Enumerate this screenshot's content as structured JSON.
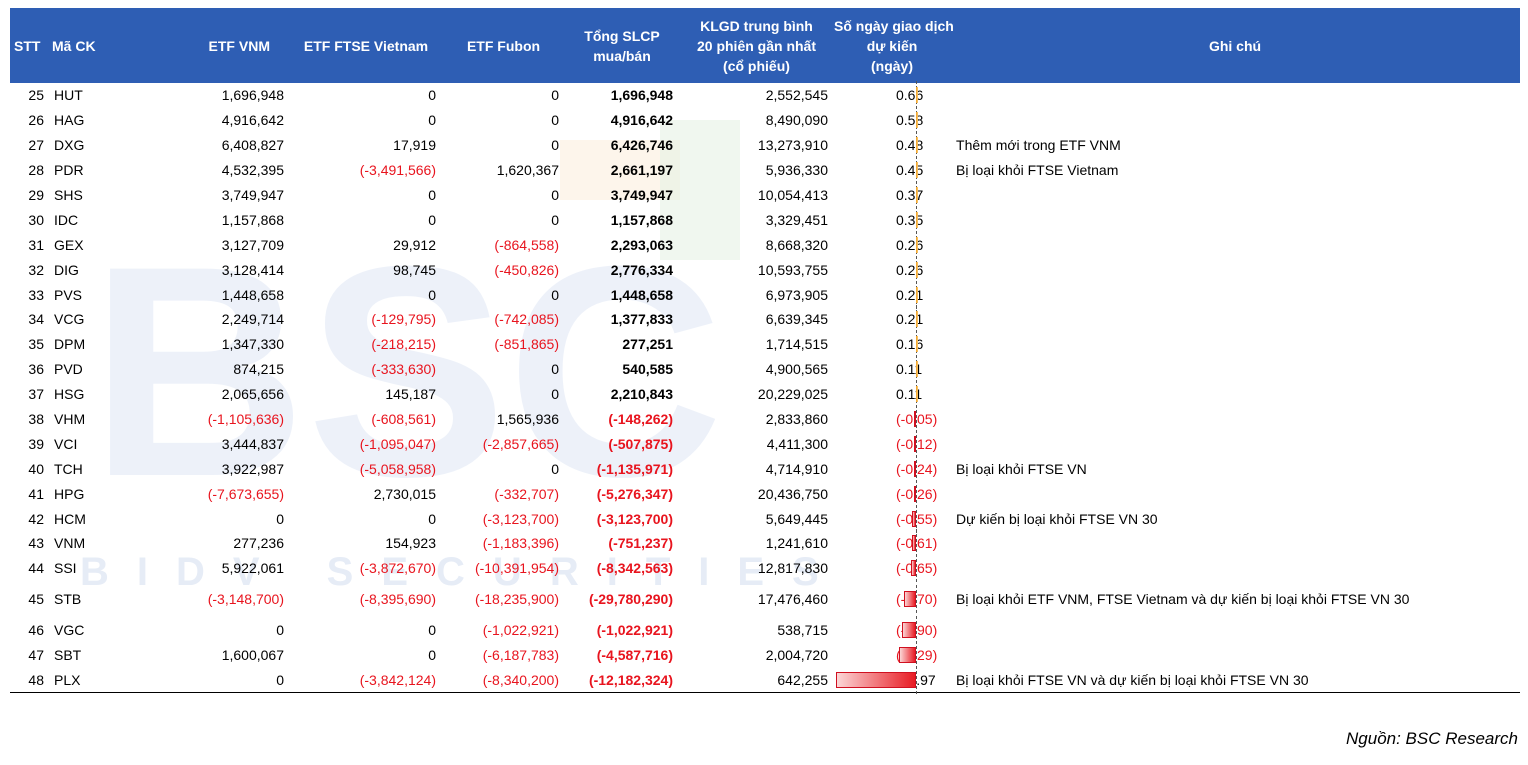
{
  "headers": {
    "stt": "STT",
    "ma": "Mã CK",
    "etf_vnm": "ETF VNM",
    "etf_ftse": "ETF FTSE Vietnam",
    "etf_fubon": "ETF Fubon",
    "tong": [
      "Tổng SLCP",
      "mua/bán"
    ],
    "klgd": [
      "KLGD trung bình",
      "20 phiên gần nhất",
      "(cổ phiếu)"
    ],
    "songay": [
      "Số ngày giao dịch",
      "dự kiến",
      "(ngày)"
    ],
    "ghichu": "Ghi chú"
  },
  "rows": [
    {
      "stt": "25",
      "ma": "HUT",
      "vnm": "1,696,948",
      "ftse": "0",
      "fubon": "0",
      "tong": "1,696,948",
      "klgd": "2,552,545",
      "days": "0.66",
      "days_value": 0.66,
      "note": ""
    },
    {
      "stt": "26",
      "ma": "HAG",
      "vnm": "4,916,642",
      "ftse": "0",
      "fubon": "0",
      "tong": "4,916,642",
      "klgd": "8,490,090",
      "days": "0.58",
      "days_value": 0.58,
      "note": ""
    },
    {
      "stt": "27",
      "ma": "DXG",
      "vnm": "6,408,827",
      "ftse": "17,919",
      "fubon": "0",
      "tong": "6,426,746",
      "klgd": "13,273,910",
      "days": "0.48",
      "days_value": 0.48,
      "note": "Thêm mới trong ETF VNM"
    },
    {
      "stt": "28",
      "ma": "PDR",
      "vnm": "4,532,395",
      "ftse": "(-3,491,566)",
      "fubon": "1,620,367",
      "tong": "2,661,197",
      "klgd": "5,936,330",
      "days": "0.45",
      "days_value": 0.45,
      "note": "Bị loại khỏi FTSE Vietnam"
    },
    {
      "stt": "29",
      "ma": "SHS",
      "vnm": "3,749,947",
      "ftse": "0",
      "fubon": "0",
      "tong": "3,749,947",
      "klgd": "10,054,413",
      "days": "0.37",
      "days_value": 0.37,
      "note": ""
    },
    {
      "stt": "30",
      "ma": "IDC",
      "vnm": "1,157,868",
      "ftse": "0",
      "fubon": "0",
      "tong": "1,157,868",
      "klgd": "3,329,451",
      "days": "0.35",
      "days_value": 0.35,
      "note": ""
    },
    {
      "stt": "31",
      "ma": "GEX",
      "vnm": "3,127,709",
      "ftse": "29,912",
      "fubon": "(-864,558)",
      "tong": "2,293,063",
      "klgd": "8,668,320",
      "days": "0.26",
      "days_value": 0.26,
      "note": ""
    },
    {
      "stt": "32",
      "ma": "DIG",
      "vnm": "3,128,414",
      "ftse": "98,745",
      "fubon": "(-450,826)",
      "tong": "2,776,334",
      "klgd": "10,593,755",
      "days": "0.26",
      "days_value": 0.26,
      "note": ""
    },
    {
      "stt": "33",
      "ma": "PVS",
      "vnm": "1,448,658",
      "ftse": "0",
      "fubon": "0",
      "tong": "1,448,658",
      "klgd": "6,973,905",
      "days": "0.21",
      "days_value": 0.21,
      "note": ""
    },
    {
      "stt": "34",
      "ma": "VCG",
      "vnm": "2,249,714",
      "ftse": "(-129,795)",
      "fubon": "(-742,085)",
      "tong": "1,377,833",
      "klgd": "6,639,345",
      "days": "0.21",
      "days_value": 0.21,
      "note": ""
    },
    {
      "stt": "35",
      "ma": "DPM",
      "vnm": "1,347,330",
      "ftse": "(-218,215)",
      "fubon": "(-851,865)",
      "tong": "277,251",
      "klgd": "1,714,515",
      "days": "0.16",
      "days_value": 0.16,
      "note": ""
    },
    {
      "stt": "36",
      "ma": "PVD",
      "vnm": "874,215",
      "ftse": "(-333,630)",
      "fubon": "0",
      "tong": "540,585",
      "klgd": "4,900,565",
      "days": "0.11",
      "days_value": 0.11,
      "note": ""
    },
    {
      "stt": "37",
      "ma": "HSG",
      "vnm": "2,065,656",
      "ftse": "145,187",
      "fubon": "0",
      "tong": "2,210,843",
      "klgd": "20,229,025",
      "days": "0.11",
      "days_value": 0.11,
      "note": ""
    },
    {
      "stt": "38",
      "ma": "VHM",
      "vnm": "(-1,105,636)",
      "ftse": "(-608,561)",
      "fubon": "1,565,936",
      "tong": "(-148,262)",
      "klgd": "2,833,860",
      "days": "(-0.05)",
      "days_value": -0.05,
      "note": ""
    },
    {
      "stt": "39",
      "ma": "VCI",
      "vnm": "3,444,837",
      "ftse": "(-1,095,047)",
      "fubon": "(-2,857,665)",
      "tong": "(-507,875)",
      "klgd": "4,411,300",
      "days": "(-0.12)",
      "days_value": -0.12,
      "note": ""
    },
    {
      "stt": "40",
      "ma": "TCH",
      "vnm": "3,922,987",
      "ftse": "(-5,058,958)",
      "fubon": "0",
      "tong": "(-1,135,971)",
      "klgd": "4,714,910",
      "days": "(-0.24)",
      "days_value": -0.24,
      "note": "Bị loại khỏi FTSE VN"
    },
    {
      "stt": "41",
      "ma": "HPG",
      "vnm": "(-7,673,655)",
      "ftse": "2,730,015",
      "fubon": "(-332,707)",
      "tong": "(-5,276,347)",
      "klgd": "20,436,750",
      "days": "(-0.26)",
      "days_value": -0.26,
      "note": ""
    },
    {
      "stt": "42",
      "ma": "HCM",
      "vnm": "0",
      "ftse": "0",
      "fubon": "(-3,123,700)",
      "tong": "(-3,123,700)",
      "klgd": "5,649,445",
      "days": "(-0.55)",
      "days_value": -0.55,
      "note": "Dự kiến bị loại khỏi FTSE VN 30"
    },
    {
      "stt": "43",
      "ma": "VNM",
      "vnm": "277,236",
      "ftse": "154,923",
      "fubon": "(-1,183,396)",
      "tong": "(-751,237)",
      "klgd": "1,241,610",
      "days": "(-0.61)",
      "days_value": -0.61,
      "note": ""
    },
    {
      "stt": "44",
      "ma": "SSI",
      "vnm": "5,922,061",
      "ftse": "(-3,872,670)",
      "fubon": "(-10,391,954)",
      "tong": "(-8,342,563)",
      "klgd": "12,817,830",
      "days": "(-0.65)",
      "days_value": -0.65,
      "note": ""
    },
    {
      "stt": "45",
      "ma": "STB",
      "vnm": "(-3,148,700)",
      "ftse": "(-8,395,690)",
      "fubon": "(-18,235,900)",
      "tong": "(-29,780,290)",
      "klgd": "17,476,460",
      "days": "(-1.70)",
      "days_value": -1.7,
      "note": "Bị loại khỏi ETF VNM, FTSE Vietnam và dự kiến bị loại khỏi FTSE VN 30"
    },
    {
      "stt": "46",
      "ma": "VGC",
      "vnm": "0",
      "ftse": "0",
      "fubon": "(-1,022,921)",
      "tong": "(-1,022,921)",
      "klgd": "538,715",
      "days": "(-1.90)",
      "days_value": -1.9,
      "note": ""
    },
    {
      "stt": "47",
      "ma": "SBT",
      "vnm": "1,600,067",
      "ftse": "0",
      "fubon": "(-6,187,783)",
      "tong": "(-4,587,716)",
      "klgd": "2,004,720",
      "days": "(-2.29)",
      "days_value": -2.29,
      "note": ""
    },
    {
      "stt": "48",
      "ma": "PLX",
      "vnm": "0",
      "ftse": "(-3,842,124)",
      "fubon": "(-8,340,200)",
      "tong": "(-12,182,324)",
      "klgd": "642,255",
      "days": "-18.97",
      "days_value": -18.97,
      "note": "Bị loại khỏi FTSE VN và dự kiến bị loại khỏi FTSE VN 30"
    }
  ],
  "watermark": {
    "logo": "BSC",
    "text": "BIDV SECURITIES"
  },
  "source": "Nguồn: BSC Research",
  "colors": {
    "header_bg": "#2e5eb4",
    "negative": "#e8141e",
    "bar_positive": "#f3a020",
    "bar_negative": "#e81c24"
  }
}
